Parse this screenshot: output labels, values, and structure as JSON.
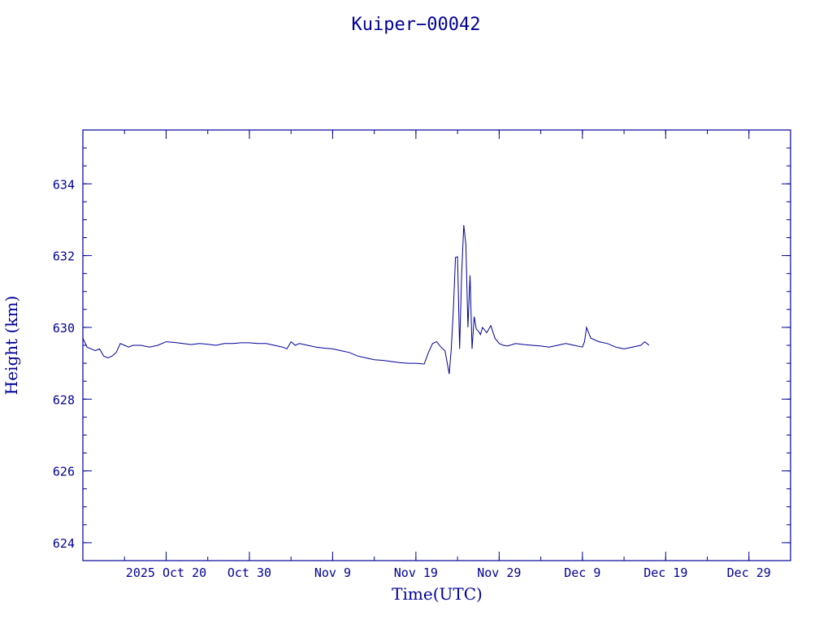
{
  "colors": {
    "ink": "#000099",
    "background": "#ffffff"
  },
  "chart_data": {
    "type": "line",
    "title": "Kuiper−00042",
    "xlabel": "Time(UTC)",
    "ylabel": "Height (km)",
    "xlim": [
      "2025-10-10",
      "2026-01-03"
    ],
    "ylim": [
      623.5,
      635.5
    ],
    "x_ticks": [
      {
        "date": "2025-10-20",
        "label": "2025 Oct 20"
      },
      {
        "date": "2025-10-30",
        "label": "Oct 30"
      },
      {
        "date": "2025-11-09",
        "label": "Nov  9"
      },
      {
        "date": "2025-11-19",
        "label": "Nov 19"
      },
      {
        "date": "2025-11-29",
        "label": "Nov 29"
      },
      {
        "date": "2025-12-09",
        "label": "Dec  9"
      },
      {
        "date": "2025-12-19",
        "label": "Dec 19"
      },
      {
        "date": "2025-12-29",
        "label": "Dec 29"
      }
    ],
    "y_ticks": [
      624,
      626,
      628,
      630,
      632,
      634
    ],
    "grid": false,
    "series": [
      {
        "x": [
          "2025-10-10T00:00",
          "2025-10-10T12:00",
          "2025-10-11T00:00",
          "2025-10-11T12:00",
          "2025-10-12T00:00",
          "2025-10-12T12:00",
          "2025-10-13T00:00",
          "2025-10-13T12:00",
          "2025-10-14T00:00",
          "2025-10-14T12:00",
          "2025-10-15T00:00",
          "2025-10-15T12:00",
          "2025-10-16T00:00",
          "2025-10-17T00:00",
          "2025-10-18T00:00",
          "2025-10-19T00:00",
          "2025-10-20T00:00",
          "2025-10-21T00:00",
          "2025-10-22T00:00",
          "2025-10-23T00:00",
          "2025-10-24T00:00",
          "2025-10-25T00:00",
          "2025-10-26T00:00",
          "2025-10-27T00:00",
          "2025-10-28T00:00",
          "2025-10-29T00:00",
          "2025-10-30T00:00",
          "2025-10-31T00:00",
          "2025-11-01T00:00",
          "2025-11-02T00:00",
          "2025-11-03T00:00",
          "2025-11-03T12:00",
          "2025-11-04T00:00",
          "2025-11-04T12:00",
          "2025-11-05T00:00",
          "2025-11-06T00:00",
          "2025-11-07T00:00",
          "2025-11-08T00:00",
          "2025-11-09T00:00",
          "2025-11-10T00:00",
          "2025-11-11T00:00",
          "2025-11-12T00:00",
          "2025-11-13T00:00",
          "2025-11-14T00:00",
          "2025-11-15T00:00",
          "2025-11-16T00:00",
          "2025-11-17T00:00",
          "2025-11-18T00:00",
          "2025-11-19T00:00",
          "2025-11-20T00:00",
          "2025-11-20T12:00",
          "2025-11-21T00:00",
          "2025-11-21T12:00",
          "2025-11-22T00:00",
          "2025-11-22T12:00",
          "2025-11-23T00:00",
          "2025-11-23T06:00",
          "2025-11-23T12:00",
          "2025-11-23T18:00",
          "2025-11-24T00:00",
          "2025-11-24T06:00",
          "2025-11-24T12:00",
          "2025-11-24T18:00",
          "2025-11-25T00:00",
          "2025-11-25T06:00",
          "2025-11-25T12:00",
          "2025-11-25T18:00",
          "2025-11-26T00:00",
          "2025-11-26T06:00",
          "2025-11-26T12:00",
          "2025-11-26T18:00",
          "2025-11-27T00:00",
          "2025-11-27T12:00",
          "2025-11-28T00:00",
          "2025-11-28T12:00",
          "2025-11-29T00:00",
          "2025-11-29T12:00",
          "2025-11-30T00:00",
          "2025-12-01T00:00",
          "2025-12-02T00:00",
          "2025-12-03T00:00",
          "2025-12-04T00:00",
          "2025-12-05T00:00",
          "2025-12-06T00:00",
          "2025-12-07T00:00",
          "2025-12-08T00:00",
          "2025-12-09T00:00",
          "2025-12-09T06:00",
          "2025-12-09T12:00",
          "2025-12-10T00:00",
          "2025-12-11T00:00",
          "2025-12-12T00:00",
          "2025-12-13T00:00",
          "2025-12-14T00:00",
          "2025-12-15T00:00",
          "2025-12-16T00:00",
          "2025-12-16T12:00",
          "2025-12-17T00:00"
        ],
        "y": [
          629.7,
          629.45,
          629.4,
          629.35,
          629.4,
          629.2,
          629.15,
          629.2,
          629.3,
          629.55,
          629.5,
          629.45,
          629.5,
          629.5,
          629.45,
          629.5,
          629.6,
          629.58,
          629.55,
          629.52,
          629.55,
          629.53,
          629.5,
          629.55,
          629.55,
          629.57,
          629.57,
          629.55,
          629.55,
          629.5,
          629.45,
          629.4,
          629.6,
          629.5,
          629.55,
          629.5,
          629.45,
          629.42,
          629.4,
          629.35,
          629.3,
          629.2,
          629.15,
          629.1,
          629.08,
          629.05,
          629.02,
          629.0,
          629.0,
          628.98,
          629.3,
          629.55,
          629.6,
          629.45,
          629.35,
          628.7,
          629.4,
          630.5,
          631.95,
          631.97,
          629.4,
          631.5,
          632.85,
          632.3,
          630.0,
          631.45,
          629.4,
          630.3,
          629.95,
          629.9,
          629.8,
          630.0,
          629.85,
          630.05,
          629.7,
          629.55,
          629.5,
          629.48,
          629.55,
          629.52,
          629.5,
          629.48,
          629.45,
          629.5,
          629.55,
          629.5,
          629.45,
          629.6,
          630.0,
          629.7,
          629.6,
          629.55,
          629.45,
          629.4,
          629.45,
          629.5,
          629.6,
          629.5
        ]
      }
    ]
  }
}
